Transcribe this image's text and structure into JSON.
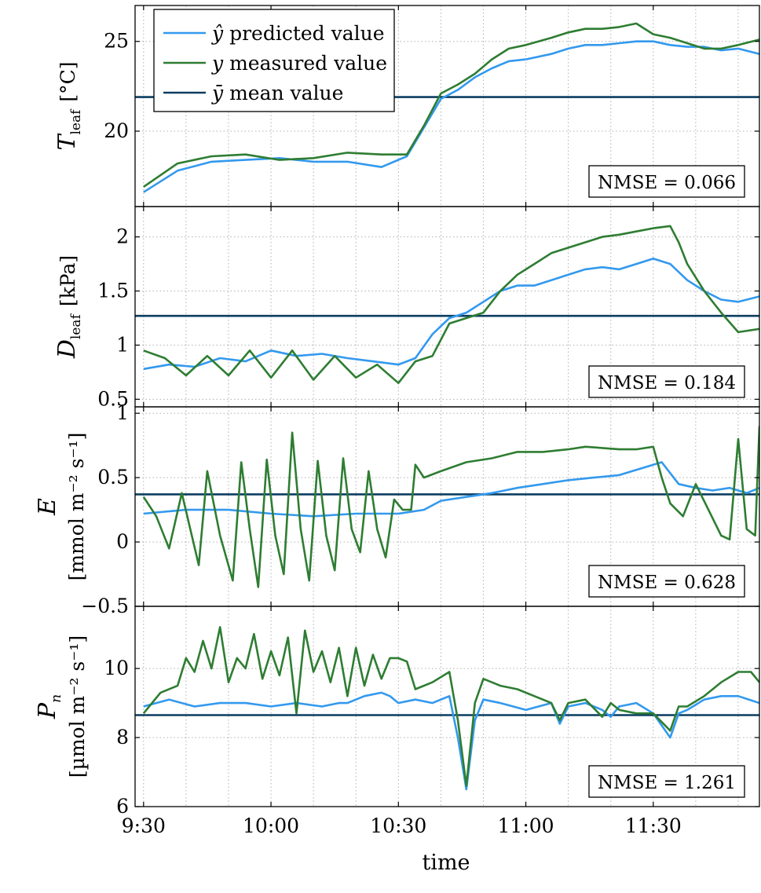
{
  "chart_data": {
    "type": "line",
    "xlabel": "time",
    "x_tick_labels": [
      "9:30",
      "10:00",
      "10:30",
      "11:00",
      "11:30"
    ],
    "x_tick_minutes": [
      0,
      30,
      60,
      90,
      120
    ],
    "x_range_minutes": [
      -2,
      145
    ],
    "colors": {
      "predicted": "#3399ee",
      "measured": "#2e7d32",
      "mean": "#0b3d61"
    },
    "legend": {
      "placement": "top-left",
      "entries": [
        {
          "symbol": "ŷ",
          "text": "predicted value"
        },
        {
          "symbol": "y",
          "text": "measured value"
        },
        {
          "symbol": "ȳ",
          "text": "mean value"
        }
      ]
    },
    "grid": "dotted",
    "panels": [
      {
        "ylabel_symbol": "T",
        "ylabel_sub": "leaf",
        "ylabel_unit": "[°C]",
        "ylim": [
          15.8,
          27.0
        ],
        "yticks": [
          20,
          25
        ],
        "y_tick_labels": [
          "20",
          "25"
        ],
        "mean": 21.9,
        "nmse": "NMSE = 0.066",
        "series": [
          {
            "name": "ŷ predicted value",
            "key": "predicted",
            "x": [
              0,
              8,
              16,
              24,
              32,
              40,
              48,
              56,
              62,
              66,
              70,
              74,
              78,
              82,
              86,
              90,
              96,
              100,
              104,
              108,
              112,
              116,
              120,
              124,
              128,
              132,
              136,
              140,
              145
            ],
            "y": [
              16.6,
              17.8,
              18.3,
              18.4,
              18.5,
              18.3,
              18.3,
              18.0,
              18.6,
              20.2,
              21.8,
              22.3,
              23.0,
              23.5,
              23.9,
              24.0,
              24.3,
              24.6,
              24.8,
              24.8,
              24.9,
              25.0,
              25.0,
              24.8,
              24.7,
              24.7,
              24.5,
              24.6,
              24.3
            ]
          },
          {
            "name": "y measured value",
            "key": "measured",
            "x": [
              0,
              8,
              16,
              24,
              32,
              40,
              48,
              56,
              62,
              66,
              70,
              74,
              78,
              82,
              86,
              90,
              96,
              100,
              104,
              108,
              112,
              116,
              120,
              124,
              128,
              132,
              136,
              140,
              145
            ],
            "y": [
              16.9,
              18.2,
              18.6,
              18.7,
              18.4,
              18.5,
              18.8,
              18.7,
              18.7,
              20.3,
              22.1,
              22.6,
              23.2,
              24.0,
              24.6,
              24.8,
              25.2,
              25.5,
              25.7,
              25.7,
              25.8,
              26.0,
              25.4,
              25.2,
              24.9,
              24.6,
              24.6,
              24.8,
              25.1
            ]
          }
        ]
      },
      {
        "ylabel_symbol": "D",
        "ylabel_sub": "leaf",
        "ylabel_unit": "[kPa]",
        "ylim": [
          0.43,
          2.28
        ],
        "yticks": [
          0.5,
          1,
          1.5,
          2
        ],
        "y_tick_labels": [
          "0.5",
          "1",
          "1.5",
          "2"
        ],
        "mean": 1.27,
        "nmse": "NMSE = 0.184",
        "series": [
          {
            "name": "ŷ predicted value",
            "key": "predicted",
            "x": [
              0,
              6,
              12,
              18,
              24,
              30,
              36,
              42,
              48,
              54,
              60,
              64,
              68,
              72,
              76,
              80,
              84,
              88,
              92,
              96,
              100,
              104,
              108,
              112,
              116,
              120,
              124,
              128,
              132,
              136,
              140,
              145
            ],
            "y": [
              0.78,
              0.82,
              0.8,
              0.88,
              0.85,
              0.95,
              0.9,
              0.92,
              0.88,
              0.85,
              0.82,
              0.88,
              1.1,
              1.25,
              1.3,
              1.4,
              1.5,
              1.55,
              1.55,
              1.6,
              1.65,
              1.7,
              1.72,
              1.7,
              1.75,
              1.8,
              1.75,
              1.6,
              1.5,
              1.42,
              1.4,
              1.45
            ]
          },
          {
            "name": "y measured value",
            "key": "measured",
            "x": [
              0,
              5,
              10,
              15,
              20,
              25,
              30,
              35,
              40,
              45,
              50,
              55,
              60,
              64,
              68,
              72,
              76,
              80,
              84,
              88,
              92,
              96,
              100,
              104,
              108,
              112,
              116,
              120,
              124,
              126,
              128,
              132,
              136,
              140,
              145
            ],
            "y": [
              0.95,
              0.88,
              0.72,
              0.9,
              0.72,
              0.95,
              0.7,
              0.95,
              0.68,
              0.9,
              0.7,
              0.82,
              0.65,
              0.85,
              0.9,
              1.2,
              1.25,
              1.3,
              1.5,
              1.65,
              1.75,
              1.85,
              1.9,
              1.95,
              2.0,
              2.02,
              2.05,
              2.08,
              2.1,
              1.95,
              1.75,
              1.5,
              1.3,
              1.12,
              1.15
            ]
          }
        ]
      },
      {
        "ylabel_symbol": "E",
        "ylabel_sub": "",
        "ylabel_unit": "[mmol m⁻² s⁻¹]",
        "ylim": [
          -0.5,
          1.05
        ],
        "yticks": [
          -0.5,
          0,
          0.5,
          1
        ],
        "y_tick_labels": [
          "−0.5",
          "0",
          "0.5",
          "1"
        ],
        "mean": 0.37,
        "nmse": "NMSE = 0.628",
        "series": [
          {
            "name": "ŷ predicted value",
            "key": "predicted",
            "x": [
              0,
              10,
              20,
              30,
              40,
              50,
              60,
              66,
              70,
              76,
              82,
              88,
              94,
              100,
              106,
              112,
              118,
              122,
              126,
              130,
              134,
              138,
              142,
              145
            ],
            "y": [
              0.22,
              0.25,
              0.25,
              0.22,
              0.2,
              0.22,
              0.22,
              0.25,
              0.32,
              0.35,
              0.38,
              0.42,
              0.45,
              0.48,
              0.5,
              0.52,
              0.58,
              0.62,
              0.45,
              0.42,
              0.4,
              0.42,
              0.38,
              0.42
            ]
          },
          {
            "name": "y measured value",
            "key": "measured",
            "x": [
              0,
              3,
              6,
              9,
              11,
              13,
              15,
              18,
              21,
              23,
              25,
              27,
              29,
              31,
              33,
              35,
              37,
              39,
              41,
              43,
              45,
              47,
              49,
              51,
              53,
              55,
              57,
              59,
              61,
              63,
              64,
              66,
              70,
              76,
              82,
              88,
              94,
              100,
              104,
              108,
              112,
              116,
              120,
              122,
              124,
              127,
              130,
              133,
              136,
              138,
              140,
              142,
              144,
              145
            ],
            "y": [
              0.35,
              0.2,
              -0.05,
              0.38,
              0.1,
              -0.18,
              0.55,
              0.05,
              -0.3,
              0.62,
              0.1,
              -0.35,
              0.64,
              0.05,
              -0.25,
              0.85,
              0.1,
              -0.3,
              0.63,
              0.05,
              -0.22,
              0.65,
              0.1,
              -0.08,
              0.55,
              0.1,
              -0.12,
              0.33,
              0.25,
              0.25,
              0.6,
              0.5,
              0.55,
              0.62,
              0.65,
              0.7,
              0.7,
              0.72,
              0.74,
              0.73,
              0.72,
              0.72,
              0.74,
              0.5,
              0.3,
              0.2,
              0.45,
              0.25,
              0.05,
              0.02,
              0.8,
              0.1,
              0.05,
              0.9
            ]
          }
        ]
      },
      {
        "ylabel_symbol": "P",
        "ylabel_sub": "n",
        "ylabel_unit": "[µmol m⁻² s⁻¹]",
        "ylim": [
          6.0,
          11.8
        ],
        "yticks": [
          6,
          8,
          10
        ],
        "y_tick_labels": [
          "6",
          "8",
          "10"
        ],
        "mean": 8.65,
        "nmse": "NMSE = 1.261",
        "series": [
          {
            "name": "ŷ predicted value",
            "key": "predicted",
            "x": [
              0,
              6,
              12,
              18,
              24,
              30,
              36,
              42,
              46,
              48,
              52,
              56,
              58,
              60,
              64,
              68,
              72,
              74,
              76,
              78,
              80,
              84,
              90,
              96,
              98,
              100,
              104,
              108,
              110,
              112,
              116,
              120,
              124,
              126,
              128,
              132,
              136,
              140,
              145
            ],
            "y": [
              8.9,
              9.1,
              8.9,
              9.0,
              9.0,
              8.9,
              9.0,
              8.9,
              9.0,
              9.0,
              9.2,
              9.3,
              9.2,
              9.0,
              9.1,
              9.0,
              9.2,
              8.0,
              6.5,
              8.5,
              9.1,
              9.0,
              8.8,
              9.0,
              8.4,
              8.9,
              9.0,
              8.8,
              8.6,
              8.9,
              9.0,
              8.7,
              8.0,
              8.7,
              8.8,
              9.1,
              9.2,
              9.2,
              9.0
            ]
          },
          {
            "name": "y measured value",
            "key": "measured",
            "x": [
              0,
              4,
              8,
              10,
              12,
              14,
              16,
              18,
              20,
              22,
              24,
              26,
              28,
              30,
              32,
              34,
              36,
              38,
              40,
              42,
              44,
              46,
              48,
              50,
              52,
              54,
              56,
              58,
              60,
              62,
              64,
              68,
              72,
              74,
              76,
              78,
              80,
              84,
              88,
              92,
              96,
              98,
              100,
              104,
              108,
              110,
              112,
              116,
              120,
              124,
              126,
              128,
              132,
              136,
              140,
              143,
              145
            ],
            "y": [
              8.7,
              9.3,
              9.5,
              10.3,
              9.9,
              10.8,
              10.0,
              11.2,
              9.6,
              10.3,
              10.0,
              11.0,
              9.7,
              10.5,
              9.8,
              10.9,
              8.7,
              11.1,
              9.9,
              10.5,
              9.6,
              10.6,
              9.2,
              10.6,
              9.5,
              10.4,
              9.7,
              10.3,
              10.3,
              10.2,
              9.4,
              9.6,
              9.9,
              8.5,
              6.6,
              9.0,
              9.7,
              9.5,
              9.4,
              9.2,
              9.0,
              8.5,
              9.0,
              9.1,
              8.6,
              9.0,
              8.8,
              8.7,
              8.7,
              8.2,
              8.9,
              8.9,
              9.2,
              9.6,
              9.9,
              9.9,
              9.6
            ]
          }
        ]
      }
    ]
  }
}
